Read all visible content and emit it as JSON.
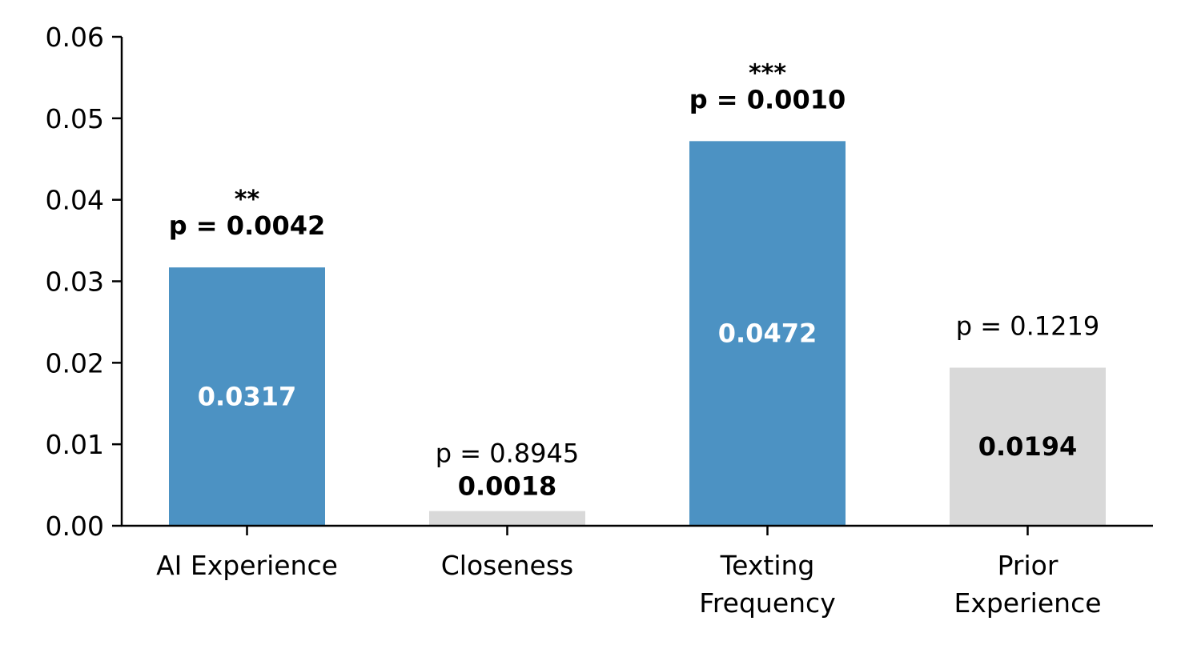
{
  "chart_data": {
    "type": "bar",
    "categories": [
      [
        "AI Experience"
      ],
      [
        "Closeness"
      ],
      [
        "Texting",
        "Frequency"
      ],
      [
        "Prior",
        "Experience"
      ]
    ],
    "values": [
      0.0317,
      0.0018,
      0.0472,
      0.0194
    ],
    "value_labels": [
      "0.0317",
      "0.0018",
      "0.0472",
      "0.0194"
    ],
    "p_labels": [
      "p = 0.0042",
      "p = 0.8945",
      "p = 0.0010",
      "p = 0.1219"
    ],
    "significance": [
      "**",
      "",
      "***",
      ""
    ],
    "significant": [
      true,
      false,
      true,
      false
    ],
    "ylim": [
      0,
      0.06
    ],
    "yticks": [
      "0.00",
      "0.01",
      "0.02",
      "0.03",
      "0.04",
      "0.05",
      "0.06"
    ],
    "ytick_values": [
      0,
      0.01,
      0.02,
      0.03,
      0.04,
      0.05,
      0.06
    ],
    "xlabel": "",
    "ylabel": "",
    "title": "",
    "grid": false,
    "colors": {
      "significant": "#4c92c3",
      "not_significant": "#d9d9d9",
      "axis": "#000000"
    }
  }
}
